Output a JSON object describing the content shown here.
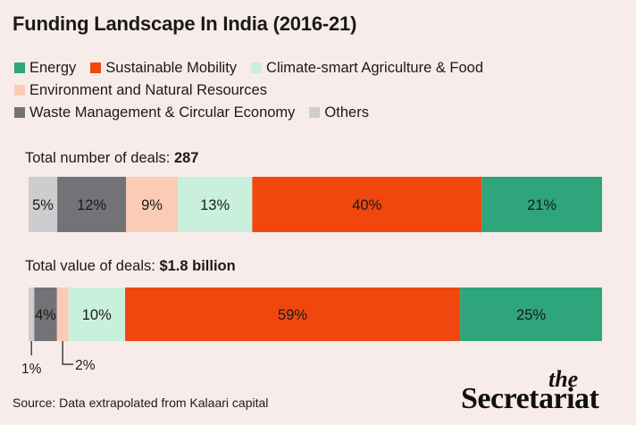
{
  "title": "Funding Landscape In India (2016-21)",
  "colors": {
    "energy": "#2ea57b",
    "mobility": "#f0470e",
    "agri": "#c9f0dc",
    "env": "#fbcbb6",
    "waste": "#737377",
    "others": "#cdcdcf"
  },
  "legend": [
    {
      "key": "energy",
      "label": "Energy"
    },
    {
      "key": "mobility",
      "label": "Sustainable Mobility"
    },
    {
      "key": "agri",
      "label": "Climate-smart Agriculture & Food"
    },
    {
      "key": "env",
      "label": "Environment and Natural Resources"
    },
    {
      "key": "waste",
      "label": "Waste Management & Circular Economy"
    },
    {
      "key": "others",
      "label": "Others"
    }
  ],
  "bars": {
    "deals_label": "Total number of deals: ",
    "deals_value": "287",
    "value_label": "Total value of deals: ",
    "value_value": "$1.8 billion"
  },
  "chart_data": {
    "type": "bar",
    "stacked": true,
    "orientation": "horizontal",
    "unit": "%",
    "categories": [
      "Total number of deals",
      "Total value of deals"
    ],
    "series": [
      {
        "name": "Others",
        "key": "others",
        "values": [
          5,
          1
        ],
        "labels": [
          "5%",
          "1%"
        ]
      },
      {
        "name": "Waste Management & Circular Economy",
        "key": "waste",
        "values": [
          12,
          4
        ],
        "labels": [
          "12%",
          "4%"
        ]
      },
      {
        "name": "Environment and Natural Resources",
        "key": "env",
        "values": [
          9,
          2
        ],
        "labels": [
          "9%",
          "2%"
        ]
      },
      {
        "name": "Climate-smart Agriculture & Food",
        "key": "agri",
        "values": [
          13,
          10
        ],
        "labels": [
          "13%",
          "10%"
        ]
      },
      {
        "name": "Sustainable Mobility",
        "key": "mobility",
        "values": [
          40,
          59
        ],
        "labels": [
          "40%",
          "59%"
        ]
      },
      {
        "name": "Energy",
        "key": "energy",
        "values": [
          21,
          25
        ],
        "labels": [
          "21%",
          "25%"
        ]
      }
    ]
  },
  "source": "Source: Data extrapolated from Kalaari capital",
  "brand": {
    "the": "the",
    "name": "Secretariat"
  }
}
